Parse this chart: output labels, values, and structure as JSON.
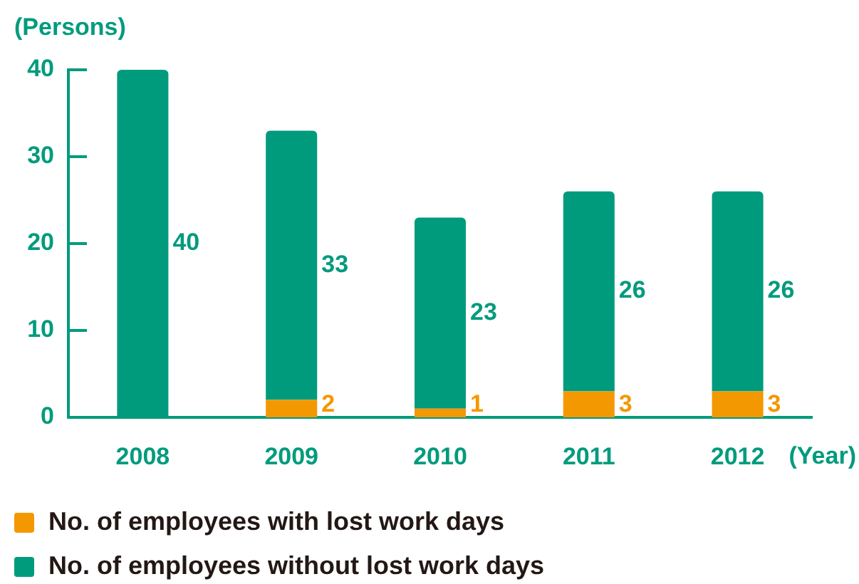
{
  "chart_data": {
    "type": "bar",
    "ylabel": "(Persons)",
    "xlabel": "(Year)",
    "categories": [
      "2008",
      "2009",
      "2010",
      "2011",
      "2012"
    ],
    "stacked": true,
    "series": [
      {
        "name": "No. of employees with lost work days",
        "color": "#f39800",
        "values": [
          0,
          2,
          1,
          3,
          3
        ],
        "value_labels": [
          null,
          "2",
          "1",
          "3",
          "3"
        ]
      },
      {
        "name": "No. of employees without lost work days",
        "color": "#009b7d",
        "values": [
          40,
          31,
          22,
          23,
          23
        ]
      }
    ],
    "totals": [
      "40",
      "33",
      "23",
      "26",
      "26"
    ],
    "ylim": [
      0,
      40
    ],
    "yticks": [
      0,
      10,
      20,
      30,
      40
    ],
    "legend": "bottom"
  }
}
